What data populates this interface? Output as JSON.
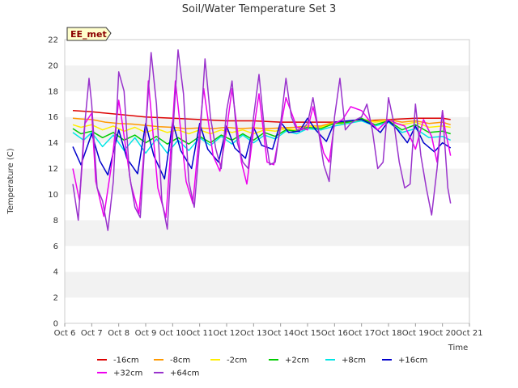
{
  "chart_data": {
    "type": "line",
    "title": "Soil/Water Temperature Set 3",
    "xlabel": "Time",
    "ylabel": "Temperature (C)",
    "badge": "EE_met",
    "ylim": [
      0,
      22
    ],
    "xlim": [
      6,
      21
    ],
    "yticks": [
      0,
      2,
      4,
      6,
      8,
      10,
      12,
      14,
      16,
      18,
      20,
      22
    ],
    "ytick_labels": [
      "0",
      "2",
      "4",
      "6",
      "8",
      "10",
      "12",
      "14",
      "16",
      "18",
      "20",
      "22"
    ],
    "xticks": [
      6,
      7,
      8,
      9,
      10,
      11,
      12,
      13,
      14,
      15,
      16,
      17,
      18,
      19,
      20,
      21
    ],
    "xtick_labels": [
      "Oct 6",
      "Oct 7",
      "Oct 8",
      "Oct 9",
      "Oct 10",
      "Oct 11",
      "Oct 12",
      "Oct 13",
      "Oct 14",
      "Oct 15",
      "Oct 16",
      "Oct 17",
      "Oct 18",
      "Oct 19",
      "Oct 20",
      "Oct 21"
    ],
    "grid": "horizontal bands",
    "legend_position": "bottom",
    "series": [
      {
        "name": "-16cm",
        "color": "#dd0000",
        "x": [
          6.3,
          7,
          8,
          9,
          10,
          11,
          12,
          13,
          14,
          15,
          16,
          17,
          18,
          19,
          19.5,
          20,
          20.3
        ],
        "y": [
          16.5,
          16.4,
          16.2,
          16.0,
          15.9,
          15.8,
          15.7,
          15.7,
          15.6,
          15.6,
          15.6,
          15.7,
          15.8,
          15.9,
          15.9,
          15.9,
          15.8
        ]
      },
      {
        "name": "-8cm",
        "color": "#ff9900",
        "x": [
          6.3,
          6.6,
          7.0,
          7.5,
          8.0,
          8.5,
          9.0,
          9.5,
          10.0,
          10.5,
          11.0,
          11.5,
          12.0,
          12.5,
          13.0,
          13.5,
          14.0,
          14.5,
          15.0,
          15.5,
          16.0,
          16.5,
          17.0,
          17.5,
          18.0,
          18.5,
          19.0,
          19.5,
          20.0,
          20.3
        ],
        "y": [
          15.9,
          15.85,
          15.8,
          15.6,
          15.5,
          15.45,
          15.35,
          15.25,
          15.2,
          15.1,
          15.15,
          15.1,
          15.2,
          15.1,
          15.15,
          15.1,
          15.15,
          15.2,
          15.3,
          15.3,
          15.6,
          15.6,
          15.8,
          15.7,
          15.8,
          15.6,
          15.7,
          15.5,
          15.6,
          15.4
        ]
      },
      {
        "name": "-2cm",
        "color": "#ffee00",
        "x": [
          6.3,
          6.6,
          7.0,
          7.4,
          7.8,
          8.2,
          8.6,
          9.0,
          9.4,
          9.8,
          10.2,
          10.6,
          11.0,
          11.4,
          11.8,
          12.2,
          12.6,
          13.0,
          13.4,
          13.8,
          14.2,
          14.6,
          15.0,
          15.5,
          16.0,
          16.5,
          17.0,
          17.5,
          18.0,
          18.5,
          19.0,
          19.5,
          20.0,
          20.3
        ],
        "y": [
          15.4,
          15.2,
          15.4,
          15.0,
          15.3,
          14.9,
          15.2,
          14.8,
          15.1,
          14.8,
          15.0,
          14.7,
          15.0,
          14.7,
          15.0,
          14.8,
          15.0,
          14.7,
          15.0,
          14.9,
          15.1,
          15.0,
          15.3,
          15.2,
          15.5,
          15.5,
          15.8,
          15.6,
          15.7,
          15.4,
          15.6,
          15.2,
          15.3,
          15.2
        ]
      },
      {
        "name": "+2cm",
        "color": "#00cc00",
        "x": [
          6.3,
          6.6,
          7.0,
          7.4,
          7.8,
          8.2,
          8.6,
          9.0,
          9.4,
          9.8,
          10.2,
          10.6,
          11.0,
          11.4,
          11.8,
          12.2,
          12.6,
          13.0,
          13.4,
          13.8,
          14.2,
          14.6,
          15.0,
          15.5,
          16.0,
          16.5,
          17.0,
          17.5,
          18.0,
          18.5,
          19.0,
          19.5,
          20.0,
          20.3
        ],
        "y": [
          15.1,
          14.7,
          14.9,
          14.4,
          14.8,
          14.2,
          14.6,
          14.0,
          14.5,
          13.9,
          14.4,
          13.9,
          14.5,
          14.0,
          14.6,
          14.2,
          14.7,
          14.2,
          14.8,
          14.5,
          15.0,
          14.9,
          15.2,
          15.1,
          15.5,
          15.6,
          15.9,
          15.4,
          15.7,
          15.0,
          15.4,
          14.8,
          14.9,
          14.7
        ]
      },
      {
        "name": "+8cm",
        "color": "#00e5e5",
        "x": [
          6.3,
          6.7,
          7.0,
          7.4,
          7.8,
          8.2,
          8.6,
          9.0,
          9.4,
          9.8,
          10.2,
          10.6,
          11.0,
          11.4,
          11.8,
          12.2,
          12.6,
          13.0,
          13.4,
          13.8,
          14.2,
          14.6,
          15.0,
          15.5,
          16.0,
          16.5,
          17.0,
          17.5,
          18.0,
          18.5,
          19.0,
          19.5,
          20.0,
          20.3
        ],
        "y": [
          14.8,
          14.2,
          14.8,
          13.7,
          14.6,
          13.4,
          14.4,
          13.2,
          14.3,
          13.2,
          14.2,
          13.4,
          14.4,
          13.8,
          14.5,
          13.9,
          14.6,
          14.0,
          14.6,
          14.3,
          14.9,
          14.7,
          15.1,
          15.0,
          15.3,
          15.5,
          15.7,
          15.3,
          15.6,
          14.8,
          15.1,
          14.4,
          14.5,
          14.2
        ]
      },
      {
        "name": "+16cm",
        "color": "#0000cc",
        "x": [
          6.3,
          6.6,
          7.0,
          7.3,
          7.6,
          8.0,
          8.3,
          8.7,
          9.0,
          9.3,
          9.7,
          10.0,
          10.3,
          10.7,
          11.0,
          11.3,
          11.7,
          12.0,
          12.3,
          12.7,
          13.0,
          13.3,
          13.7,
          14.0,
          14.3,
          14.7,
          15.0,
          15.3,
          15.7,
          16.0,
          16.5,
          17.0,
          17.3,
          17.7,
          18.0,
          18.3,
          18.7,
          19.0,
          19.3,
          19.7,
          20.0,
          20.3
        ],
        "y": [
          13.7,
          12.3,
          14.7,
          12.6,
          11.5,
          15.0,
          12.8,
          11.6,
          15.5,
          13.0,
          11.2,
          15.6,
          13.4,
          12.0,
          15.5,
          13.5,
          12.5,
          15.3,
          13.6,
          12.8,
          15.2,
          13.8,
          13.5,
          15.6,
          14.8,
          14.9,
          15.9,
          15.0,
          14.1,
          15.6,
          15.7,
          15.8,
          15.5,
          14.8,
          15.7,
          15.1,
          14.0,
          15.3,
          14.0,
          13.3,
          14.0,
          13.6
        ]
      },
      {
        "name": "+32cm",
        "color": "#ee00ee",
        "x": [
          6.3,
          6.55,
          6.75,
          7.0,
          7.15,
          7.45,
          7.75,
          8.0,
          8.1,
          8.45,
          8.75,
          9.0,
          9.1,
          9.45,
          9.75,
          10.0,
          10.1,
          10.5,
          10.75,
          11.0,
          11.15,
          11.5,
          11.75,
          12.0,
          12.2,
          12.55,
          12.75,
          13.0,
          13.2,
          13.5,
          13.75,
          14.0,
          14.2,
          14.6,
          15.0,
          15.2,
          15.6,
          15.8,
          16.0,
          16.3,
          16.6,
          17.0,
          17.3,
          17.6,
          17.8,
          18.0,
          18.3,
          18.6,
          18.9,
          19.0,
          19.3,
          19.6,
          19.8,
          20.0,
          20.1,
          20.3
        ],
        "y": [
          12.0,
          9.5,
          15.5,
          16.3,
          11.0,
          8.3,
          12.5,
          17.3,
          16.0,
          10.8,
          8.5,
          15.0,
          18.8,
          10.5,
          8.2,
          15.5,
          18.8,
          11.0,
          9.3,
          15.0,
          18.2,
          13.0,
          11.8,
          15.0,
          18.2,
          12.5,
          10.8,
          15.0,
          17.8,
          12.5,
          12.3,
          15.2,
          17.5,
          15.2,
          15.0,
          16.8,
          13.2,
          12.5,
          15.5,
          15.8,
          16.8,
          16.5,
          15.7,
          15.0,
          15.4,
          15.8,
          15.5,
          15.3,
          14.0,
          13.5,
          15.8,
          14.5,
          12.5,
          16.5,
          15.0,
          13.0
        ]
      },
      {
        "name": "+64cm",
        "color": "#9933cc",
        "x": [
          6.3,
          6.5,
          6.7,
          6.9,
          7.0,
          7.2,
          7.4,
          7.6,
          7.8,
          8.0,
          8.2,
          8.4,
          8.6,
          8.8,
          9.0,
          9.2,
          9.4,
          9.6,
          9.8,
          10.0,
          10.2,
          10.4,
          10.6,
          10.8,
          11.0,
          11.2,
          11.4,
          11.6,
          11.8,
          12.0,
          12.2,
          12.4,
          12.6,
          12.8,
          13.0,
          13.2,
          13.4,
          13.6,
          13.8,
          14.0,
          14.2,
          14.4,
          14.6,
          14.8,
          15.0,
          15.2,
          15.4,
          15.6,
          15.8,
          16.0,
          16.2,
          16.4,
          16.6,
          16.8,
          17.0,
          17.2,
          17.4,
          17.6,
          17.8,
          18.0,
          18.2,
          18.4,
          18.6,
          18.8,
          19.0,
          19.2,
          19.4,
          19.6,
          19.8,
          20.0,
          20.2,
          20.3
        ],
        "y": [
          10.8,
          8.0,
          14.5,
          19.0,
          17.0,
          10.5,
          9.5,
          7.2,
          11.0,
          19.5,
          18.0,
          11.5,
          9.0,
          8.2,
          15.0,
          21.0,
          17.0,
          9.5,
          7.3,
          14.5,
          21.2,
          17.8,
          11.0,
          9.0,
          14.0,
          20.5,
          16.0,
          13.5,
          12.0,
          16.5,
          18.8,
          14.0,
          12.5,
          12.0,
          16.0,
          19.3,
          15.0,
          12.3,
          12.5,
          15.5,
          19.0,
          16.0,
          15.0,
          15.0,
          15.5,
          17.5,
          15.0,
          12.3,
          11.0,
          16.0,
          19.0,
          15.0,
          15.5,
          15.8,
          16.0,
          17.0,
          15.0,
          12.0,
          12.5,
          17.5,
          15.5,
          12.5,
          10.5,
          10.8,
          17.0,
          13.0,
          10.5,
          8.4,
          12.0,
          16.5,
          10.5,
          9.3
        ]
      }
    ]
  }
}
